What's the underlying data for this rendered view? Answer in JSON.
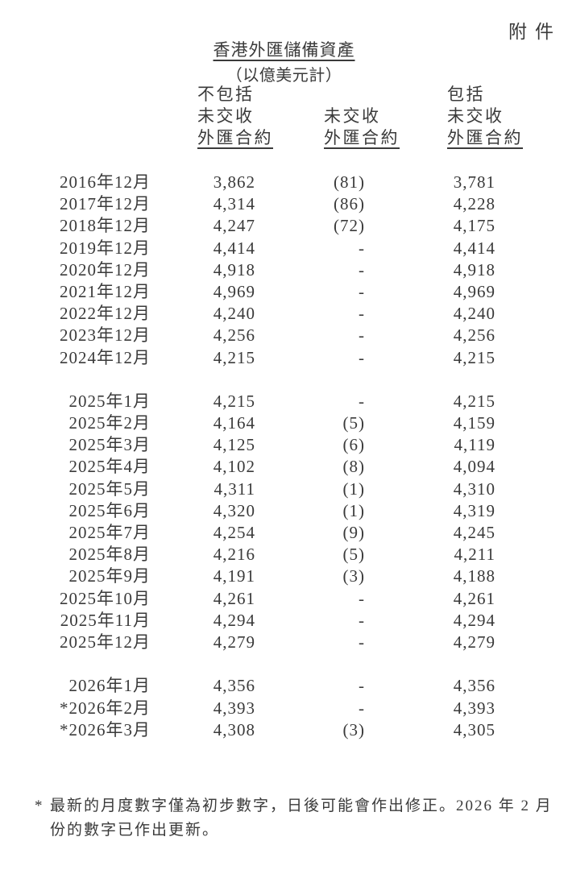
{
  "document": {
    "attachment_label": "附件",
    "title": "香港外匯儲備資產",
    "subtitle": "（以億美元計）"
  },
  "columns": {
    "excluding": [
      "不包括",
      "未交收",
      "外匯合約"
    ],
    "net": [
      "未交收",
      "外匯合約"
    ],
    "including": [
      "包括",
      "未交收",
      "外匯合約"
    ]
  },
  "table": {
    "groups": [
      {
        "name": "annual",
        "rows": [
          {
            "period": "2016年12月",
            "excluding": "3,862",
            "net": "(81)",
            "including": "3,781"
          },
          {
            "period": "2017年12月",
            "excluding": "4,314",
            "net": "(86)",
            "including": "4,228"
          },
          {
            "period": "2018年12月",
            "excluding": "4,247",
            "net": "(72)",
            "including": "4,175"
          },
          {
            "period": "2019年12月",
            "excluding": "4,414",
            "net": "-",
            "including": "4,414"
          },
          {
            "period": "2020年12月",
            "excluding": "4,918",
            "net": "-",
            "including": "4,918"
          },
          {
            "period": "2021年12月",
            "excluding": "4,969",
            "net": "-",
            "including": "4,969"
          },
          {
            "period": "2022年12月",
            "excluding": "4,240",
            "net": "-",
            "including": "4,240"
          },
          {
            "period": "2023年12月",
            "excluding": "4,256",
            "net": "-",
            "including": "4,256"
          },
          {
            "period": "2024年12月",
            "excluding": "4,215",
            "net": "-",
            "including": "4,215"
          }
        ]
      },
      {
        "name": "monthly-2025",
        "rows": [
          {
            "period": "2025年1月",
            "excluding": "4,215",
            "net": "-",
            "including": "4,215"
          },
          {
            "period": "2025年2月",
            "excluding": "4,164",
            "net": "(5)",
            "including": "4,159"
          },
          {
            "period": "2025年3月",
            "excluding": "4,125",
            "net": "(6)",
            "including": "4,119"
          },
          {
            "period": "2025年4月",
            "excluding": "4,102",
            "net": "(8)",
            "including": "4,094"
          },
          {
            "period": "2025年5月",
            "excluding": "4,311",
            "net": "(1)",
            "including": "4,310"
          },
          {
            "period": "2025年6月",
            "excluding": "4,320",
            "net": "(1)",
            "including": "4,319"
          },
          {
            "period": "2025年7月",
            "excluding": "4,254",
            "net": "(9)",
            "including": "4,245"
          },
          {
            "period": "2025年8月",
            "excluding": "4,216",
            "net": "(5)",
            "including": "4,211"
          },
          {
            "period": "2025年9月",
            "excluding": "4,191",
            "net": "(3)",
            "including": "4,188"
          },
          {
            "period": "2025年10月",
            "excluding": "4,261",
            "net": "-",
            "including": "4,261"
          },
          {
            "period": "2025年11月",
            "excluding": "4,294",
            "net": "-",
            "including": "4,294"
          },
          {
            "period": "2025年12月",
            "excluding": "4,279",
            "net": "-",
            "including": "4,279"
          }
        ]
      },
      {
        "name": "monthly-2026",
        "rows": [
          {
            "period": "2026年1月",
            "excluding": "4,356",
            "net": "-",
            "including": "4,356"
          },
          {
            "period": "*2026年2月",
            "excluding": "4,393",
            "net": "-",
            "including": "4,393"
          },
          {
            "period": "*2026年3月",
            "excluding": "4,308",
            "net": "(3)",
            "including": "4,305"
          }
        ]
      }
    ]
  },
  "footnote": {
    "marker": "*",
    "lines": [
      "最新的月度數字僅為初步數字，日後可能會作出修正。2026 年 2 月",
      "份的數字已作出更新。"
    ]
  }
}
